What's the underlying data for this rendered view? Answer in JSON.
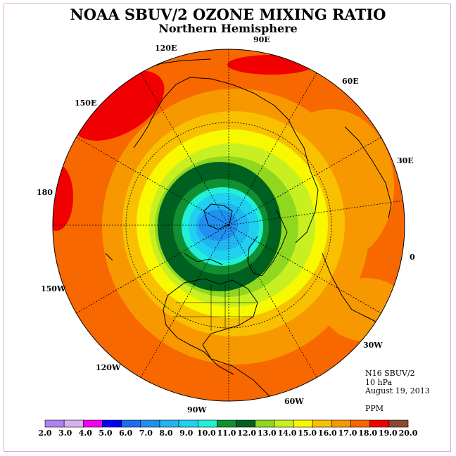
{
  "title": "NOAA SBUV/2 OZONE MIXING RATIO",
  "subtitle": "Northern Hemisphere",
  "info": {
    "instrument": "N16 SBUV/2",
    "level": "10 hPa",
    "date": "August 19, 2013",
    "units": "PPM"
  },
  "longitude_labels": [
    "0",
    "30E",
    "60E",
    "90E",
    "120E",
    "150E",
    "180",
    "150W",
    "120W",
    "90W",
    "60W",
    "30W"
  ],
  "colorbar": {
    "labels": [
      "2.0",
      "3.0",
      "4.0",
      "5.0",
      "6.0",
      "7.0",
      "8.0",
      "9.0",
      "10.0",
      "11.0",
      "12.0",
      "13.0",
      "14.0",
      "15.0",
      "16.0",
      "17.0",
      "18.0",
      "19.0",
      "20.0"
    ],
    "colors": [
      "#b080f0",
      "#d8b0f0",
      "#f000f0",
      "#0000f0",
      "#1e6cf0",
      "#2090f0",
      "#20b4f0",
      "#20d0f0",
      "#20f0d8",
      "#109030",
      "#006020",
      "#90d820",
      "#c8f020",
      "#f8f800",
      "#f8c000",
      "#f89800",
      "#f86800",
      "#f00000",
      "#8a4a30"
    ]
  },
  "colors": {
    "land_outline": "#000000",
    "grid": "#000000",
    "frame": "#d6a8d8"
  }
}
